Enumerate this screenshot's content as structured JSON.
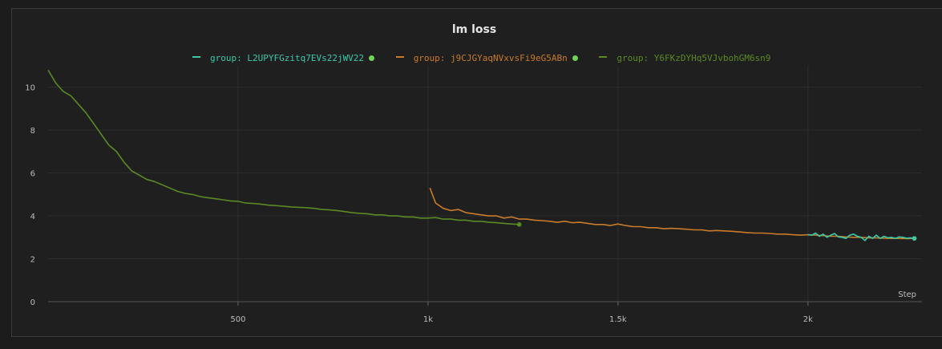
{
  "chart_data": {
    "type": "line",
    "title": "lm loss",
    "xlabel": "Step",
    "ylabel": "",
    "xlim": [
      0,
      2300
    ],
    "ylim": [
      0,
      11
    ],
    "x_ticks": [
      500,
      1000,
      1500,
      2000
    ],
    "x_tick_labels": [
      "500",
      "1k",
      "1.5k",
      "2k"
    ],
    "y_ticks": [
      0,
      2,
      4,
      6,
      8,
      10
    ],
    "y_tick_labels": [
      "0",
      "2",
      "4",
      "6",
      "8",
      "10"
    ],
    "grid": true,
    "legend_position": "top-center",
    "series": [
      {
        "name": "group: L2UPYFGzitq7EVs22jWV22",
        "color": "#3cc9a8",
        "active_dot_color": "#6fd35a",
        "x": [
          2000,
          2010,
          2020,
          2030,
          2040,
          2050,
          2060,
          2070,
          2080,
          2090,
          2100,
          2110,
          2120,
          2130,
          2140,
          2150,
          2160,
          2170,
          2180,
          2190,
          2200,
          2210,
          2220,
          2230,
          2240,
          2250,
          2260,
          2270,
          2280
        ],
        "y": [
          3.12,
          3.1,
          3.2,
          3.05,
          3.15,
          3.0,
          3.1,
          3.18,
          3.02,
          3.0,
          2.95,
          3.1,
          3.15,
          3.05,
          3.0,
          2.85,
          3.05,
          2.95,
          3.1,
          2.95,
          3.05,
          2.98,
          3.0,
          2.95,
          3.02,
          3.0,
          2.96,
          2.98,
          2.95
        ]
      },
      {
        "name": "group: j9CJGYaqNVxvsFi9eG5ABn",
        "color": "#c87b2a",
        "active_dot_color": "#6fd35a",
        "x": [
          1005,
          1020,
          1040,
          1060,
          1080,
          1100,
          1120,
          1140,
          1160,
          1180,
          1200,
          1220,
          1240,
          1260,
          1280,
          1300,
          1320,
          1340,
          1360,
          1380,
          1400,
          1420,
          1440,
          1460,
          1480,
          1500,
          1520,
          1540,
          1560,
          1580,
          1600,
          1620,
          1640,
          1660,
          1680,
          1700,
          1720,
          1740,
          1760,
          1780,
          1800,
          1820,
          1840,
          1860,
          1880,
          1900,
          1920,
          1940,
          1960,
          1980,
          2000,
          2020,
          2040,
          2060,
          2080,
          2100,
          2120,
          2140,
          2160,
          2180,
          2200,
          2220,
          2240,
          2260,
          2280
        ],
        "y": [
          5.3,
          4.6,
          4.35,
          4.25,
          4.3,
          4.15,
          4.1,
          4.05,
          4.0,
          4.0,
          3.9,
          3.95,
          3.85,
          3.85,
          3.8,
          3.78,
          3.75,
          3.7,
          3.75,
          3.68,
          3.7,
          3.65,
          3.6,
          3.6,
          3.55,
          3.62,
          3.55,
          3.5,
          3.5,
          3.45,
          3.45,
          3.4,
          3.42,
          3.4,
          3.38,
          3.35,
          3.35,
          3.3,
          3.32,
          3.3,
          3.28,
          3.25,
          3.22,
          3.2,
          3.2,
          3.18,
          3.15,
          3.15,
          3.12,
          3.1,
          3.12,
          3.1,
          3.08,
          3.05,
          3.05,
          3.02,
          3.0,
          3.0,
          2.98,
          2.97,
          2.96,
          2.95,
          2.95,
          2.94,
          2.95
        ]
      },
      {
        "name": "group: Y6FKzDYHq5VJvbohGM6sn9",
        "color": "#5a8a25",
        "active_dot_color": "#6fd35a",
        "x": [
          0,
          20,
          40,
          60,
          80,
          100,
          120,
          140,
          160,
          180,
          200,
          220,
          240,
          260,
          280,
          300,
          320,
          340,
          360,
          380,
          400,
          420,
          440,
          460,
          480,
          500,
          520,
          540,
          560,
          580,
          600,
          620,
          640,
          660,
          680,
          700,
          720,
          740,
          760,
          780,
          800,
          820,
          840,
          860,
          880,
          900,
          920,
          940,
          960,
          980,
          1000,
          1020,
          1040,
          1060,
          1080,
          1100,
          1120,
          1140,
          1160,
          1180,
          1200,
          1220,
          1240
        ],
        "y": [
          10.8,
          10.2,
          9.8,
          9.6,
          9.2,
          8.8,
          8.3,
          7.8,
          7.3,
          7.0,
          6.5,
          6.1,
          5.9,
          5.7,
          5.6,
          5.45,
          5.3,
          5.15,
          5.05,
          5.0,
          4.9,
          4.85,
          4.8,
          4.75,
          4.7,
          4.68,
          4.6,
          4.58,
          4.55,
          4.5,
          4.48,
          4.45,
          4.42,
          4.4,
          4.38,
          4.35,
          4.3,
          4.28,
          4.25,
          4.2,
          4.15,
          4.12,
          4.1,
          4.05,
          4.05,
          4.0,
          4.0,
          3.95,
          3.95,
          3.9,
          3.9,
          3.92,
          3.85,
          3.85,
          3.8,
          3.8,
          3.75,
          3.75,
          3.7,
          3.68,
          3.65,
          3.62,
          3.6
        ]
      }
    ]
  }
}
